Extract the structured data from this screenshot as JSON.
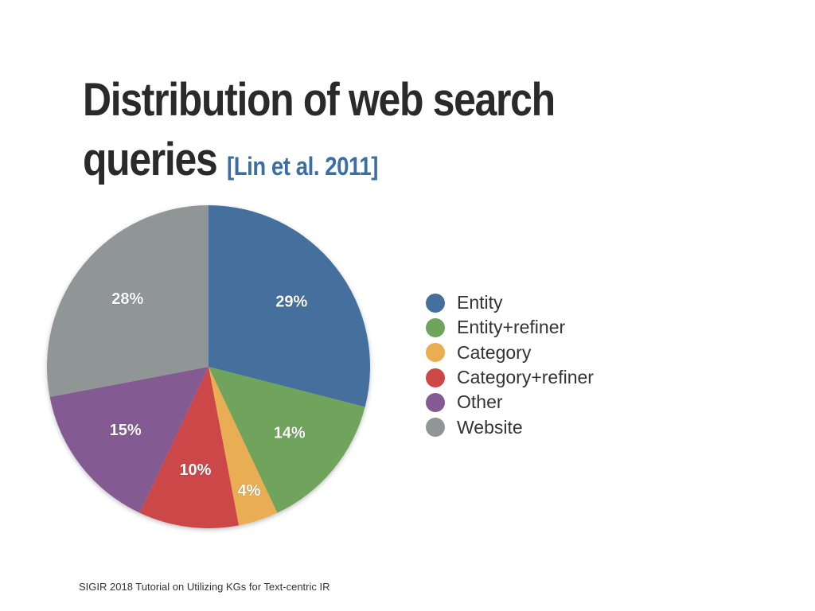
{
  "slide": {
    "title_line1": "Distribution of web search",
    "title_line2": "queries",
    "citation": "[Lin et al. 2011]",
    "footer": "SIGIR 2018 Tutorial on Utilizing KGs for Text-centric IR"
  },
  "chart_data": {
    "type": "pie",
    "title": "",
    "categories": [
      "Entity",
      "Entity+refiner",
      "Category",
      "Category+refiner",
      "Other",
      "Website"
    ],
    "values": [
      29,
      14,
      4,
      10,
      15,
      28
    ],
    "labels": [
      "29%",
      "14%",
      "4%",
      "10%",
      "15%",
      "28%"
    ],
    "colors": [
      "#45709e",
      "#6fa45c",
      "#e9ad52",
      "#cc4747",
      "#845a92",
      "#909695"
    ],
    "start_angle": "12 o'clock",
    "direction": "clockwise",
    "legend": "right"
  }
}
